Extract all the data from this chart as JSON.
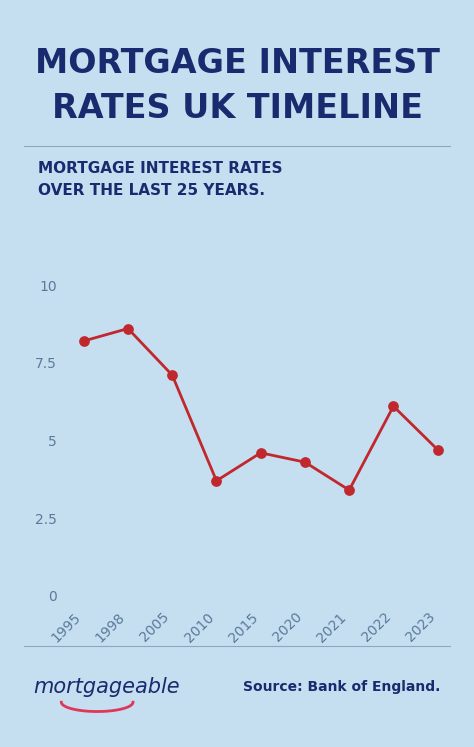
{
  "title_line1": "MORTGAGE INTEREST",
  "title_line2": "RATES UK TIMELINE",
  "subtitle_line1": "MORTGAGE INTEREST RATES",
  "subtitle_line2": "OVER THE LAST 25 YEARS.",
  "years": [
    "1995",
    "1998",
    "2005",
    "2010",
    "2015",
    "2020",
    "2021",
    "2022",
    "2023"
  ],
  "values": [
    8.2,
    8.6,
    7.1,
    3.7,
    4.6,
    4.3,
    3.4,
    6.1,
    4.7
  ],
  "line_color": "#c0282d",
  "dot_color": "#c0282d",
  "background_color": "#c5dff0",
  "title_color": "#1a2a6e",
  "subtitle_color": "#1a2a6e",
  "tick_color": "#5a7a9a",
  "yticks": [
    0,
    2.5,
    5,
    7.5,
    10
  ],
  "ylim": [
    -0.3,
    11.0
  ],
  "brand_text": "mortgageable",
  "source_text": "Source: Bank of England.",
  "title_fontsize": 24,
  "subtitle_fontsize": 11,
  "brand_fontsize": 15,
  "source_fontsize": 10,
  "axis_fontsize": 10,
  "sep_line_color": "#8aaabb",
  "brand_color": "#1a2a6e",
  "smile_color": "#e0365a"
}
